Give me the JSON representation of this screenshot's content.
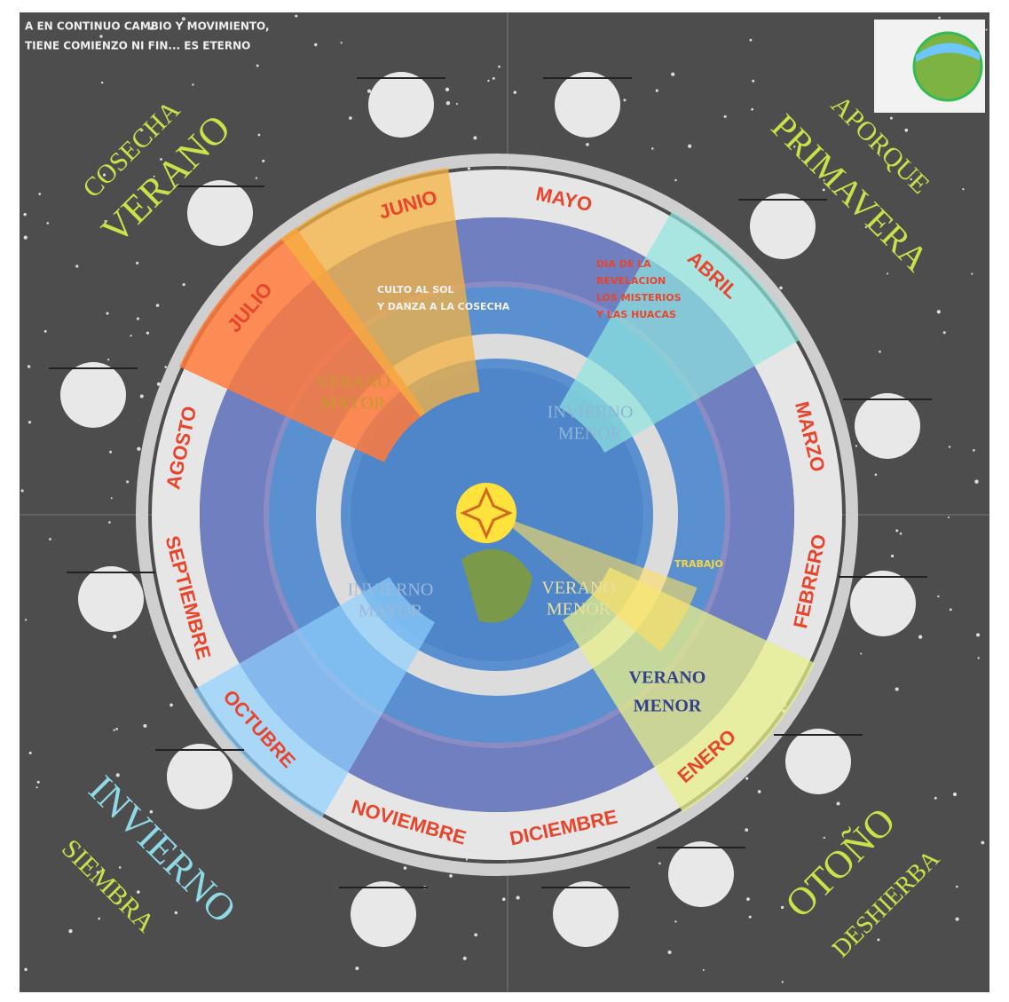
{
  "header": {
    "lines": [
      "A EN CONTINUO CAMBIO Y MOVIMIENTO,",
      "TIENE COMIENZO NI FIN... ES ETERNO"
    ]
  },
  "seasons": [
    {
      "label": "COSECHA"
    },
    {
      "label": "VERANO"
    },
    {
      "label": "APORQUE"
    },
    {
      "label": "PRIMAVERA"
    },
    {
      "label": "INVIERNO"
    },
    {
      "label": "SIEMBRA"
    },
    {
      "label": "OTOÑO"
    },
    {
      "label": "DESHIERBA"
    }
  ],
  "months": [
    "MAYO",
    "JUNIO",
    "JULIO",
    "AGOSTO",
    "SEPTIEMBRE",
    "OCTUBRE",
    "NOVIEMBRE",
    "DICIEMBRE",
    "ENERO",
    "FEBRERO",
    "MARZO",
    "ABRIL"
  ],
  "inner": [
    {
      "lines": [
        "VERANO",
        "MAYOR"
      ]
    },
    {
      "lines": [
        "INVIERNO",
        "MENOR"
      ]
    },
    {
      "lines": [
        "INVIERNO",
        "MAYOR"
      ]
    },
    {
      "lines": [
        "VERANO",
        "MENOR"
      ]
    },
    {
      "lines": [
        "VERANO",
        "MENOR"
      ]
    }
  ],
  "captions": [
    {
      "lines": [
        "CULTO AL SOL",
        "Y DANZA A LA COSECHA"
      ]
    },
    {
      "lines": [
        "DIA DE LA",
        "REVELACION",
        "LOS MISTERIOS",
        "Y LAS HUACAS"
      ]
    },
    {
      "lines": [
        "TRABAJO"
      ]
    }
  ]
}
